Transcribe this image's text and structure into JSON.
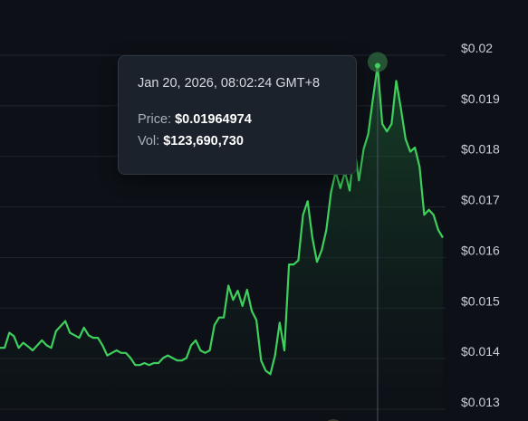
{
  "chart_data": {
    "type": "area",
    "title": "",
    "xlabel": "",
    "ylabel": "",
    "ylim": [
      0.013,
      0.02
    ],
    "y_ticks": [
      "$0.02",
      "$0.019",
      "$0.018",
      "$0.017",
      "$0.016",
      "$0.015",
      "$0.014",
      "$0.013"
    ],
    "grid": true,
    "series": [
      {
        "values": [
          0.01407,
          0.01407,
          0.01437,
          0.0143,
          0.01407,
          0.01417,
          0.0141,
          0.01402,
          0.01412,
          0.01422,
          0.01412,
          0.01407,
          0.0144,
          0.0145,
          0.0146,
          0.01437,
          0.01432,
          0.01427,
          0.01447,
          0.01432,
          0.01427,
          0.01427,
          0.01412,
          0.01392,
          0.01397,
          0.01402,
          0.01397,
          0.01397,
          0.01387,
          0.01373,
          0.01373,
          0.01377,
          0.01373,
          0.01377,
          0.01377,
          0.01387,
          0.01392,
          0.01387,
          0.01382,
          0.01382,
          0.01387,
          0.01412,
          0.01422,
          0.01402,
          0.01397,
          0.01402,
          0.01452,
          0.01467,
          0.01467,
          0.0153,
          0.01502,
          0.0152,
          0.0149,
          0.01522,
          0.0148,
          0.01462,
          0.01382,
          0.01362,
          0.01355,
          0.01392,
          0.01457,
          0.01402,
          0.01572,
          0.01572,
          0.0158,
          0.0167,
          0.01697,
          0.01625,
          0.01577,
          0.016,
          0.0164,
          0.01715,
          0.01755,
          0.01723,
          0.01755,
          0.01718,
          0.01805,
          0.01738,
          0.018,
          0.0183,
          0.019,
          0.01965,
          0.0185,
          0.01835,
          0.0185,
          0.01935,
          0.0188,
          0.0182,
          0.01795,
          0.01803,
          0.01765,
          0.0167,
          0.0168,
          0.0167,
          0.0164,
          0.01625
        ]
      }
    ],
    "tooltip": {
      "date": "Jan 20, 2026, 08:02:24 GMT+8",
      "price_label": "Price:",
      "price_value": "$0.01964974",
      "vol_label": "Vol:",
      "vol_value": "$123,690,730",
      "index": 81
    },
    "colors": {
      "line": "#3ecf5c",
      "area_top": "#1f6b37",
      "grid": "#1f262e",
      "crosshair": "#4a5360"
    }
  }
}
